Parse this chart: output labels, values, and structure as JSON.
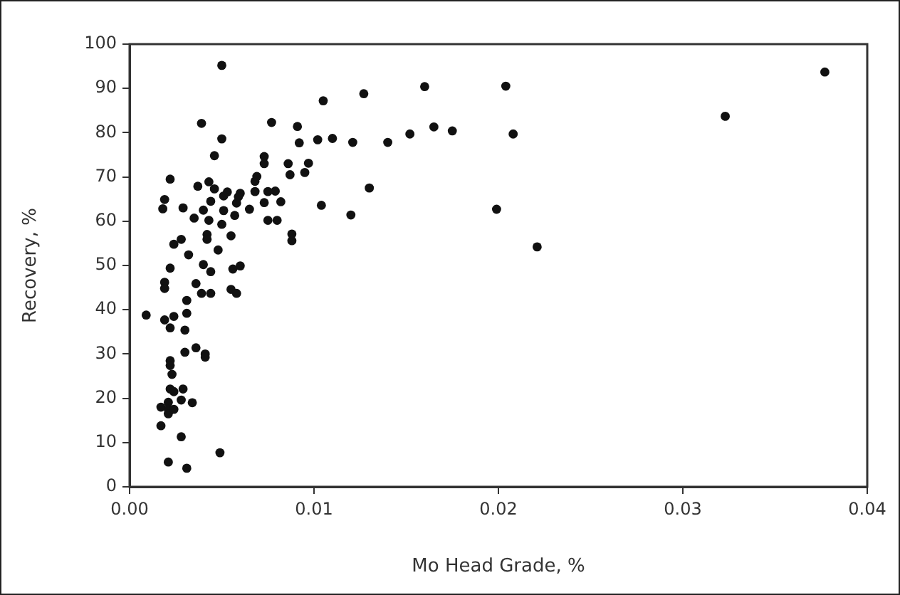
{
  "chart_data": {
    "type": "scatter",
    "xlabel": "Mo Head Grade, %",
    "ylabel": "Recovery, %",
    "xlim": [
      0,
      0.04
    ],
    "xticks": [
      {
        "value": 0,
        "label": "0.00"
      },
      {
        "value": 0.01,
        "label": "0.01"
      },
      {
        "value": 0.02,
        "label": "0.02"
      },
      {
        "value": 0.03,
        "label": "0.03"
      },
      {
        "value": 0.04,
        "label": "0.04"
      }
    ],
    "ylim": [
      0,
      100
    ],
    "yticks": [
      0,
      10,
      20,
      30,
      40,
      50,
      60,
      70,
      80,
      90,
      100
    ],
    "grid": false,
    "legend": false,
    "marker": "circle",
    "series": [
      {
        "color": "#111111",
        "x": [
          0.016,
          0.0204,
          0.0377,
          0.0323,
          0.014,
          0.0152,
          0.0165,
          0.0175,
          0.0208,
          0.0199,
          0.0221,
          0.013,
          0.005,
          0.0039,
          0.0077,
          0.0105,
          0.0127,
          0.005,
          0.0091,
          0.0092,
          0.0102,
          0.011,
          0.0121,
          0.0046,
          0.0073,
          0.0073,
          0.0086,
          0.0097,
          0.0087,
          0.0095,
          0.0022,
          0.0037,
          0.0043,
          0.0046,
          0.0053,
          0.0051,
          0.006,
          0.0068,
          0.0069,
          0.0068,
          0.0075,
          0.0079,
          0.0019,
          0.0018,
          0.0029,
          0.0035,
          0.004,
          0.0044,
          0.0043,
          0.0051,
          0.0059,
          0.0058,
          0.0057,
          0.0065,
          0.0073,
          0.0082,
          0.0075,
          0.008,
          0.0104,
          0.012,
          0.005,
          0.0055,
          0.0042,
          0.0042,
          0.0088,
          0.0088,
          0.0024,
          0.0028,
          0.0032,
          0.004,
          0.0048,
          0.0022,
          0.0044,
          0.0056,
          0.006,
          0.0019,
          0.0036,
          0.0019,
          0.0039,
          0.0044,
          0.0055,
          0.0058,
          0.0031,
          0.0009,
          0.0019,
          0.0024,
          0.0022,
          0.0031,
          0.003,
          0.0036,
          0.003,
          0.0041,
          0.0041,
          0.0022,
          0.0022,
          0.0023,
          0.0022,
          0.0024,
          0.0029,
          0.0028,
          0.0034,
          0.0017,
          0.0021,
          0.0021,
          0.0021,
          0.0024,
          0.0017,
          0.0028,
          0.0049,
          0.0021,
          0.0031
        ],
        "values": [
          90.4,
          90.5,
          93.7,
          83.7,
          77.8,
          79.7,
          81.3,
          80.4,
          79.7,
          62.7,
          54.2,
          67.5,
          95.2,
          82.1,
          82.3,
          87.2,
          88.8,
          78.6,
          81.4,
          77.7,
          78.4,
          78.7,
          77.8,
          74.8,
          74.6,
          73.0,
          73.0,
          73.1,
          70.5,
          71.0,
          69.5,
          67.9,
          68.9,
          67.3,
          66.6,
          65.7,
          66.3,
          69.0,
          70.1,
          66.7,
          66.7,
          66.8,
          64.9,
          62.8,
          63.0,
          60.7,
          62.5,
          64.5,
          60.2,
          62.4,
          65.5,
          64.1,
          61.3,
          62.7,
          64.2,
          64.4,
          60.2,
          60.2,
          63.6,
          61.4,
          59.3,
          56.7,
          57.0,
          55.9,
          57.1,
          55.6,
          54.8,
          55.9,
          52.4,
          50.2,
          53.5,
          49.4,
          48.6,
          49.2,
          49.9,
          46.2,
          45.9,
          44.8,
          43.7,
          43.7,
          44.6,
          43.7,
          42.1,
          38.8,
          37.7,
          38.5,
          35.9,
          39.2,
          35.4,
          31.4,
          30.4,
          30.0,
          29.3,
          28.5,
          27.4,
          25.4,
          22.1,
          21.5,
          22.1,
          19.6,
          19.0,
          18.0,
          19.1,
          17.5,
          16.5,
          17.5,
          13.8,
          11.3,
          7.7,
          5.6,
          4.2
        ]
      }
    ]
  }
}
